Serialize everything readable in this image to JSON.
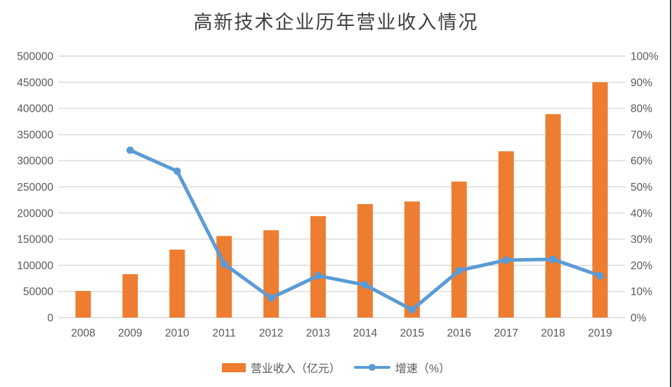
{
  "chart_data": {
    "type": "combo",
    "title": "高新技术企业历年营业收入情况",
    "categories": [
      "2008",
      "2009",
      "2010",
      "2011",
      "2012",
      "2013",
      "2014",
      "2015",
      "2016",
      "2017",
      "2018",
      "2019"
    ],
    "series": [
      {
        "name": "营业收入（亿元）",
        "type": "bar",
        "axis": "left",
        "color": "#ED7D31",
        "values": [
          51000,
          83000,
          130000,
          156000,
          167000,
          194000,
          217000,
          222000,
          260000,
          318000,
          389000,
          450000
        ]
      },
      {
        "name": "增速（%）",
        "type": "line",
        "axis": "right",
        "color": "#5B9BD5",
        "values": [
          null,
          64,
          56,
          20.5,
          7.5,
          16,
          12.5,
          3,
          18,
          22,
          22.3,
          16
        ]
      }
    ],
    "left_axis": {
      "min": 0,
      "max": 500000,
      "step": 50000,
      "tick_labels": [
        "0",
        "50000",
        "100000",
        "150000",
        "200000",
        "250000",
        "300000",
        "350000",
        "400000",
        "450000",
        "500000"
      ]
    },
    "right_axis": {
      "min": 0,
      "max": 100,
      "step": 10,
      "tick_labels": [
        "0%",
        "10%",
        "20%",
        "30%",
        "40%",
        "50%",
        "60%",
        "70%",
        "80%",
        "90%",
        "100%"
      ]
    },
    "grid": true,
    "legend_position": "bottom",
    "colors": {
      "gridline": "#D9D9D9",
      "axis_text": "#595959",
      "title_text": "#404040",
      "background": "#FFFFFF",
      "right_edge_line": "#3C3C3C"
    }
  }
}
